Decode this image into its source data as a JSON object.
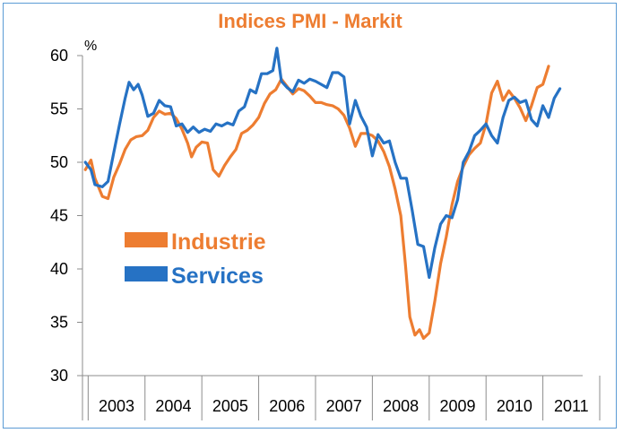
{
  "chart_data": {
    "type": "line",
    "title": "Indices PMI - Markit",
    "ylabel": "%",
    "ylim": [
      30,
      60
    ],
    "yticks": [
      30,
      35,
      40,
      45,
      50,
      55,
      60
    ],
    "xlim": [
      2002.9,
      2011.7
    ],
    "year_labels": [
      "2003",
      "2004",
      "2005",
      "2006",
      "2007",
      "2008",
      "2009",
      "2010",
      "2011"
    ],
    "grid": false,
    "legend_position": "middle-left",
    "series": [
      {
        "name": "Industrie",
        "color": "#ed7d31",
        "points": [
          [
            2002.95,
            49.3
          ],
          [
            2003.05,
            50.2
          ],
          [
            2003.12,
            48.5
          ],
          [
            2003.25,
            46.8
          ],
          [
            2003.35,
            46.6
          ],
          [
            2003.45,
            48.6
          ],
          [
            2003.55,
            49.8
          ],
          [
            2003.65,
            51.2
          ],
          [
            2003.75,
            52.1
          ],
          [
            2003.85,
            52.4
          ],
          [
            2003.95,
            52.5
          ],
          [
            2004.05,
            53.0
          ],
          [
            2004.15,
            54.2
          ],
          [
            2004.25,
            54.8
          ],
          [
            2004.35,
            54.5
          ],
          [
            2004.45,
            54.6
          ],
          [
            2004.55,
            54.1
          ],
          [
            2004.65,
            53.1
          ],
          [
            2004.75,
            51.8
          ],
          [
            2004.82,
            50.5
          ],
          [
            2004.9,
            51.4
          ],
          [
            2005.0,
            51.9
          ],
          [
            2005.1,
            51.8
          ],
          [
            2005.2,
            49.3
          ],
          [
            2005.3,
            48.7
          ],
          [
            2005.4,
            49.7
          ],
          [
            2005.5,
            50.5
          ],
          [
            2005.6,
            51.2
          ],
          [
            2005.7,
            52.7
          ],
          [
            2005.8,
            53.0
          ],
          [
            2005.9,
            53.5
          ],
          [
            2006.0,
            54.2
          ],
          [
            2006.1,
            55.5
          ],
          [
            2006.2,
            56.4
          ],
          [
            2006.3,
            56.8
          ],
          [
            2006.4,
            57.8
          ],
          [
            2006.5,
            57.1
          ],
          [
            2006.6,
            56.4
          ],
          [
            2006.7,
            56.9
          ],
          [
            2006.8,
            56.7
          ],
          [
            2006.9,
            56.2
          ],
          [
            2007.0,
            55.6
          ],
          [
            2007.1,
            55.6
          ],
          [
            2007.2,
            55.4
          ],
          [
            2007.3,
            55.3
          ],
          [
            2007.4,
            55.0
          ],
          [
            2007.5,
            54.4
          ],
          [
            2007.6,
            53.2
          ],
          [
            2007.7,
            51.5
          ],
          [
            2007.8,
            52.7
          ],
          [
            2007.9,
            52.7
          ],
          [
            2008.0,
            52.5
          ],
          [
            2008.1,
            52.0
          ],
          [
            2008.2,
            51.0
          ],
          [
            2008.3,
            49.6
          ],
          [
            2008.4,
            47.5
          ],
          [
            2008.5,
            45.0
          ],
          [
            2008.58,
            40.5
          ],
          [
            2008.66,
            35.5
          ],
          [
            2008.75,
            33.8
          ],
          [
            2008.83,
            34.3
          ],
          [
            2008.9,
            33.5
          ],
          [
            2009.0,
            34.0
          ],
          [
            2009.1,
            37.0
          ],
          [
            2009.2,
            40.5
          ],
          [
            2009.3,
            43.0
          ],
          [
            2009.4,
            46.0
          ],
          [
            2009.5,
            48.2
          ],
          [
            2009.6,
            49.6
          ],
          [
            2009.7,
            50.7
          ],
          [
            2009.8,
            51.3
          ],
          [
            2009.9,
            51.8
          ],
          [
            2010.0,
            53.6
          ],
          [
            2010.1,
            56.5
          ],
          [
            2010.2,
            57.6
          ],
          [
            2010.3,
            55.8
          ],
          [
            2010.4,
            56.7
          ],
          [
            2010.5,
            56.0
          ],
          [
            2010.6,
            55.1
          ],
          [
            2010.7,
            53.9
          ],
          [
            2010.8,
            55.3
          ],
          [
            2010.9,
            57.0
          ],
          [
            2011.0,
            57.3
          ],
          [
            2011.1,
            59.0
          ]
        ]
      },
      {
        "name": "Services",
        "color": "#2672c4",
        "points": [
          [
            2002.95,
            50.0
          ],
          [
            2003.05,
            49.3
          ],
          [
            2003.12,
            47.9
          ],
          [
            2003.25,
            47.7
          ],
          [
            2003.35,
            48.2
          ],
          [
            2003.45,
            50.9
          ],
          [
            2003.55,
            53.5
          ],
          [
            2003.65,
            56.0
          ],
          [
            2003.72,
            57.5
          ],
          [
            2003.8,
            56.8
          ],
          [
            2003.88,
            57.3
          ],
          [
            2003.95,
            56.3
          ],
          [
            2004.05,
            54.3
          ],
          [
            2004.15,
            54.6
          ],
          [
            2004.25,
            55.8
          ],
          [
            2004.35,
            55.3
          ],
          [
            2004.45,
            55.2
          ],
          [
            2004.55,
            53.4
          ],
          [
            2004.65,
            53.6
          ],
          [
            2004.75,
            52.8
          ],
          [
            2004.85,
            53.3
          ],
          [
            2004.95,
            52.8
          ],
          [
            2005.05,
            53.1
          ],
          [
            2005.15,
            52.9
          ],
          [
            2005.25,
            53.6
          ],
          [
            2005.35,
            53.4
          ],
          [
            2005.45,
            53.7
          ],
          [
            2005.55,
            53.5
          ],
          [
            2005.65,
            54.8
          ],
          [
            2005.75,
            55.2
          ],
          [
            2005.85,
            56.8
          ],
          [
            2005.95,
            56.5
          ],
          [
            2006.05,
            58.3
          ],
          [
            2006.15,
            58.3
          ],
          [
            2006.25,
            58.6
          ],
          [
            2006.32,
            60.7
          ],
          [
            2006.4,
            57.6
          ],
          [
            2006.5,
            57.0
          ],
          [
            2006.6,
            56.6
          ],
          [
            2006.7,
            57.7
          ],
          [
            2006.8,
            57.4
          ],
          [
            2006.9,
            57.8
          ],
          [
            2007.0,
            57.6
          ],
          [
            2007.1,
            57.3
          ],
          [
            2007.2,
            57.0
          ],
          [
            2007.3,
            58.4
          ],
          [
            2007.4,
            58.4
          ],
          [
            2007.5,
            58.0
          ],
          [
            2007.6,
            53.6
          ],
          [
            2007.7,
            55.8
          ],
          [
            2007.8,
            54.3
          ],
          [
            2007.9,
            53.3
          ],
          [
            2008.0,
            50.6
          ],
          [
            2008.1,
            52.6
          ],
          [
            2008.2,
            51.8
          ],
          [
            2008.3,
            52.0
          ],
          [
            2008.4,
            50.0
          ],
          [
            2008.5,
            48.5
          ],
          [
            2008.6,
            48.5
          ],
          [
            2008.7,
            45.5
          ],
          [
            2008.8,
            42.3
          ],
          [
            2008.9,
            42.1
          ],
          [
            2009.0,
            39.2
          ],
          [
            2009.1,
            42.0
          ],
          [
            2009.2,
            44.2
          ],
          [
            2009.3,
            45.0
          ],
          [
            2009.4,
            44.8
          ],
          [
            2009.5,
            46.5
          ],
          [
            2009.6,
            50.0
          ],
          [
            2009.7,
            51.0
          ],
          [
            2009.8,
            52.5
          ],
          [
            2009.9,
            53.0
          ],
          [
            2010.0,
            53.6
          ],
          [
            2010.1,
            52.5
          ],
          [
            2010.2,
            51.8
          ],
          [
            2010.3,
            54.2
          ],
          [
            2010.4,
            55.8
          ],
          [
            2010.5,
            56.1
          ],
          [
            2010.6,
            55.6
          ],
          [
            2010.7,
            55.8
          ],
          [
            2010.8,
            54.0
          ],
          [
            2010.9,
            53.4
          ],
          [
            2011.0,
            55.3
          ],
          [
            2011.1,
            54.2
          ],
          [
            2011.2,
            56.0
          ],
          [
            2011.3,
            56.9
          ]
        ]
      }
    ]
  }
}
